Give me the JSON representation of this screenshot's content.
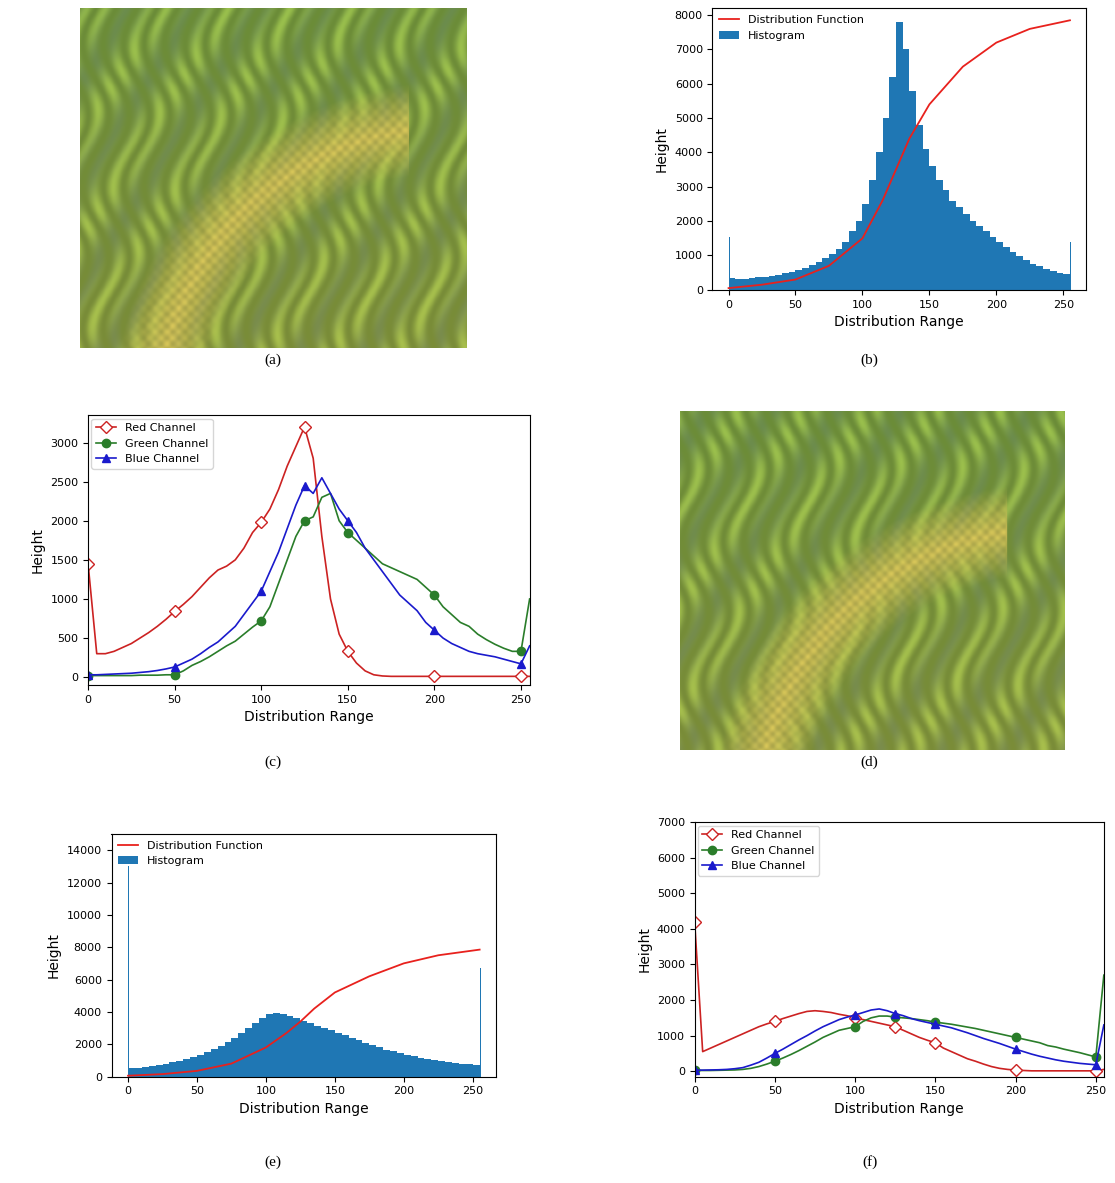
{
  "chart_data": [
    {
      "type": "image",
      "caption": "(a)"
    },
    {
      "type": "histogram",
      "caption": "(b)",
      "x_label": "Distribution Range",
      "y_label": "Height",
      "xlim": [
        -12,
        267
      ],
      "ylim": [
        0,
        8200
      ],
      "xticks": [
        0,
        50,
        100,
        150,
        200,
        250
      ],
      "yticks": [
        0,
        1000,
        2000,
        3000,
        4000,
        5000,
        6000,
        7000,
        8000
      ],
      "legend": "upper left",
      "series": [
        {
          "name": "Distribution Function",
          "type": "line",
          "color": "#e8211d",
          "x": [
            0,
            25,
            50,
            75,
            100,
            115,
            125,
            135,
            150,
            175,
            200,
            225,
            255
          ],
          "values": [
            50,
            150,
            300,
            700,
            1500,
            2600,
            3500,
            4400,
            5400,
            6500,
            7200,
            7600,
            7850
          ]
        },
        {
          "name": "Histogram",
          "type": "histogram",
          "color": "#1f77b4",
          "bins": [
            0,
            1,
            5,
            10,
            15,
            20,
            25,
            30,
            35,
            40,
            45,
            50,
            55,
            60,
            65,
            70,
            75,
            80,
            85,
            90,
            95,
            100,
            105,
            110,
            115,
            120,
            125,
            130,
            135,
            140,
            145,
            150,
            155,
            160,
            165,
            170,
            175,
            180,
            185,
            190,
            195,
            200,
            205,
            210,
            215,
            220,
            225,
            230,
            235,
            240,
            245,
            250,
            255,
            256
          ],
          "counts": [
            1550,
            350,
            320,
            330,
            340,
            360,
            380,
            410,
            440,
            480,
            530,
            590,
            650,
            730,
            820,
            920,
            1050,
            1200,
            1400,
            1700,
            2000,
            2500,
            3200,
            4000,
            5000,
            6200,
            7800,
            7000,
            5800,
            4800,
            4100,
            3600,
            3200,
            2900,
            2600,
            2400,
            2200,
            2000,
            1850,
            1700,
            1550,
            1400,
            1250,
            1100,
            980,
            870,
            760,
            680,
            600,
            540,
            500,
            470,
            1400
          ]
        }
      ]
    },
    {
      "type": "line",
      "caption": "(c)",
      "x_label": "Distribution Range",
      "y_label": "Height",
      "xlim": [
        0,
        255
      ],
      "ylim": [
        -100,
        3350
      ],
      "xticks": [
        0,
        50,
        100,
        150,
        200,
        250
      ],
      "yticks": [
        0,
        500,
        1000,
        1500,
        2000,
        2500,
        3000
      ],
      "legend": "upper left",
      "x": [
        0,
        5,
        10,
        15,
        20,
        25,
        30,
        35,
        40,
        45,
        50,
        55,
        60,
        65,
        70,
        75,
        80,
        85,
        90,
        95,
        100,
        105,
        110,
        115,
        120,
        125,
        130,
        135,
        140,
        145,
        150,
        155,
        160,
        165,
        170,
        175,
        180,
        185,
        190,
        195,
        200,
        205,
        210,
        215,
        220,
        225,
        230,
        235,
        240,
        245,
        250,
        255
      ],
      "series": [
        {
          "name": "Red Channel",
          "color": "#cc2222",
          "marker": "diamond",
          "values": [
            1450,
            300,
            300,
            330,
            380,
            430,
            500,
            570,
            650,
            740,
            840,
            930,
            1030,
            1150,
            1270,
            1370,
            1420,
            1500,
            1650,
            1850,
            1980,
            2150,
            2400,
            2700,
            2950,
            3200,
            2800,
            1800,
            1000,
            550,
            330,
            180,
            80,
            30,
            15,
            10,
            10,
            10,
            10,
            10,
            10,
            10,
            10,
            10,
            10,
            10,
            10,
            10,
            10,
            10,
            10,
            10
          ]
        },
        {
          "name": "Green Channel",
          "color": "#2a7d2a",
          "marker": "circle",
          "values": [
            20,
            20,
            20,
            20,
            20,
            20,
            25,
            25,
            25,
            30,
            30,
            80,
            150,
            200,
            260,
            330,
            400,
            460,
            550,
            640,
            720,
            900,
            1200,
            1500,
            1800,
            2000,
            2050,
            2300,
            2350,
            2000,
            1850,
            1750,
            1650,
            1550,
            1450,
            1400,
            1350,
            1300,
            1250,
            1150,
            1050,
            900,
            800,
            700,
            650,
            550,
            480,
            420,
            370,
            330,
            330,
            1000
          ]
        },
        {
          "name": "Blue Channel",
          "color": "#1a1acc",
          "marker": "triangle",
          "values": [
            30,
            30,
            35,
            40,
            45,
            50,
            60,
            70,
            85,
            105,
            130,
            180,
            230,
            300,
            380,
            450,
            550,
            650,
            800,
            950,
            1100,
            1350,
            1600,
            1900,
            2200,
            2450,
            2350,
            2550,
            2350,
            2150,
            2000,
            1850,
            1650,
            1500,
            1350,
            1200,
            1050,
            950,
            850,
            700,
            600,
            500,
            430,
            380,
            330,
            300,
            280,
            260,
            230,
            200,
            170,
            400
          ]
        }
      ]
    },
    {
      "type": "image",
      "caption": "(d)"
    },
    {
      "type": "histogram",
      "caption": "(e)",
      "x_label": "Distribution Range",
      "y_label": "Height",
      "xlim": [
        -12,
        267
      ],
      "ylim": [
        0,
        15000
      ],
      "xticks": [
        0,
        50,
        100,
        150,
        200,
        250
      ],
      "yticks": [
        0,
        2000,
        4000,
        6000,
        8000,
        10000,
        12000,
        14000
      ],
      "legend": "upper left",
      "series": [
        {
          "name": "Distribution Function",
          "type": "line",
          "color": "#e8211d",
          "x": [
            0,
            25,
            50,
            75,
            100,
            115,
            125,
            135,
            150,
            175,
            200,
            225,
            255
          ],
          "values": [
            50,
            150,
            350,
            800,
            1800,
            2700,
            3400,
            4200,
            5200,
            6200,
            7000,
            7500,
            7850
          ]
        },
        {
          "name": "Histogram",
          "type": "histogram",
          "color": "#1f77b4",
          "bins": [
            0,
            1,
            5,
            10,
            15,
            20,
            25,
            30,
            35,
            40,
            45,
            50,
            55,
            60,
            65,
            70,
            75,
            80,
            85,
            90,
            95,
            100,
            105,
            110,
            115,
            120,
            125,
            130,
            135,
            140,
            145,
            150,
            155,
            160,
            165,
            170,
            175,
            180,
            185,
            190,
            195,
            200,
            205,
            210,
            215,
            220,
            225,
            230,
            235,
            240,
            245,
            250,
            255,
            256
          ],
          "counts": [
            13000,
            500,
            550,
            600,
            650,
            700,
            780,
            870,
            970,
            1080,
            1200,
            1350,
            1500,
            1700,
            1900,
            2150,
            2400,
            2700,
            3000,
            3300,
            3600,
            3850,
            3900,
            3850,
            3750,
            3600,
            3450,
            3300,
            3150,
            3000,
            2850,
            2700,
            2550,
            2400,
            2250,
            2100,
            1950,
            1800,
            1650,
            1550,
            1450,
            1350,
            1250,
            1150,
            1080,
            1000,
            950,
            900,
            850,
            800,
            750,
            700,
            6700
          ]
        }
      ]
    },
    {
      "type": "line",
      "caption": "(f)",
      "x_label": "Distribution Range",
      "y_label": "Height",
      "xlim": [
        0,
        255
      ],
      "ylim": [
        -150,
        7000
      ],
      "xticks": [
        0,
        50,
        100,
        150,
        200,
        250
      ],
      "yticks": [
        0,
        1000,
        2000,
        3000,
        4000,
        5000,
        6000,
        7000
      ],
      "legend": "upper left",
      "x": [
        0,
        5,
        10,
        15,
        20,
        25,
        30,
        35,
        40,
        45,
        50,
        55,
        60,
        65,
        70,
        75,
        80,
        85,
        90,
        95,
        100,
        105,
        110,
        115,
        120,
        125,
        130,
        135,
        140,
        145,
        150,
        155,
        160,
        165,
        170,
        175,
        180,
        185,
        190,
        195,
        200,
        205,
        210,
        215,
        220,
        225,
        230,
        235,
        240,
        245,
        250,
        255
      ],
      "series": [
        {
          "name": "Red Channel",
          "color": "#cc2222",
          "marker": "diamond",
          "values": [
            4200,
            550,
            650,
            750,
            850,
            950,
            1050,
            1150,
            1250,
            1330,
            1400,
            1480,
            1550,
            1620,
            1680,
            1700,
            1680,
            1650,
            1600,
            1560,
            1500,
            1450,
            1400,
            1350,
            1300,
            1250,
            1150,
            1050,
            950,
            870,
            800,
            650,
            550,
            450,
            350,
            280,
            200,
            130,
            80,
            50,
            30,
            20,
            10,
            10,
            10,
            10,
            10,
            10,
            10,
            10,
            10,
            50
          ]
        },
        {
          "name": "Green Channel",
          "color": "#2a7d2a",
          "marker": "circle",
          "values": [
            20,
            20,
            20,
            25,
            30,
            35,
            50,
            80,
            130,
            200,
            280,
            370,
            470,
            580,
            700,
            820,
            950,
            1050,
            1150,
            1200,
            1250,
            1400,
            1500,
            1550,
            1550,
            1520,
            1500,
            1480,
            1450,
            1420,
            1380,
            1350,
            1320,
            1280,
            1240,
            1200,
            1150,
            1100,
            1050,
            1000,
            950,
            900,
            850,
            800,
            720,
            680,
            620,
            570,
            520,
            460,
            400,
            2700
          ]
        },
        {
          "name": "Blue Channel",
          "color": "#1a1acc",
          "marker": "triangle",
          "values": [
            30,
            30,
            35,
            40,
            50,
            70,
            100,
            170,
            250,
            370,
            500,
            620,
            750,
            880,
            1000,
            1130,
            1250,
            1350,
            1450,
            1520,
            1580,
            1650,
            1720,
            1750,
            1700,
            1620,
            1560,
            1480,
            1420,
            1370,
            1320,
            1270,
            1220,
            1150,
            1080,
            1000,
            920,
            850,
            780,
            700,
            620,
            550,
            480,
            420,
            370,
            320,
            280,
            250,
            220,
            200,
            180,
            1300
          ]
        }
      ]
    }
  ]
}
